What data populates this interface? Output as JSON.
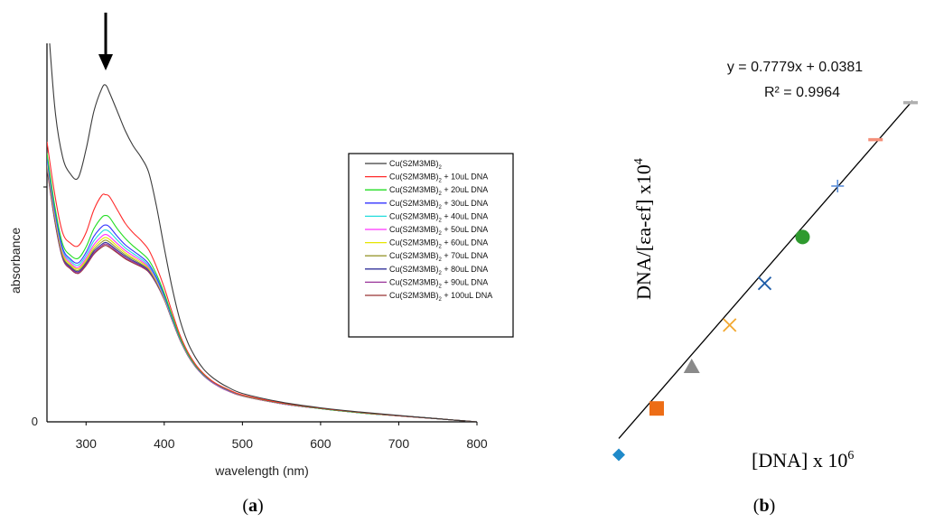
{
  "panels": {
    "a_label": "a",
    "b_label": "b"
  },
  "chart_data": [
    {
      "type": "line",
      "panel": "a",
      "xlabel": "wavelength (nm)",
      "ylabel": "absorbance",
      "xlim": [
        250,
        800
      ],
      "ylim": [
        0,
        1.0
      ],
      "x_ticks": [
        300,
        400,
        500,
        600,
        700,
        800
      ],
      "y_ticks": [
        0
      ],
      "annotation": "downward arrow marking peak near 325 nm",
      "x": [
        250,
        260,
        270,
        280,
        290,
        300,
        310,
        320,
        325,
        330,
        340,
        350,
        360,
        370,
        380,
        390,
        400,
        410,
        420,
        430,
        440,
        450,
        460,
        470,
        480,
        500,
        550,
        600,
        650,
        700,
        750,
        800
      ],
      "series": [
        {
          "name": "Cu(S2M3MB)2",
          "sub_index": "2",
          "suffix": "",
          "color": "#3a3a3a",
          "values": [
            1.1,
            0.83,
            0.7,
            0.655,
            0.645,
            0.72,
            0.82,
            0.88,
            0.89,
            0.87,
            0.82,
            0.77,
            0.73,
            0.7,
            0.66,
            0.57,
            0.46,
            0.355,
            0.27,
            0.21,
            0.17,
            0.14,
            0.12,
            0.105,
            0.093,
            0.075,
            0.052,
            0.037,
            0.026,
            0.017,
            0.008,
            0.0
          ]
        },
        {
          "name": "Cu(S2M3MB)2",
          "sub_index": "2",
          "suffix": " + 10uL DNA",
          "color": "#ff2a2a",
          "values": [
            0.74,
            0.6,
            0.5,
            0.472,
            0.465,
            0.5,
            0.56,
            0.598,
            0.6,
            0.595,
            0.56,
            0.525,
            0.5,
            0.48,
            0.455,
            0.41,
            0.355,
            0.29,
            0.23,
            0.185,
            0.152,
            0.128,
            0.11,
            0.097,
            0.087,
            0.071,
            0.05,
            0.036,
            0.025,
            0.016,
            0.008,
            0.0
          ]
        },
        {
          "name": "Cu(S2M3MB)2",
          "sub_index": "2",
          "suffix": " + 20uL DNA",
          "color": "#22dd22",
          "values": [
            0.71,
            0.57,
            0.47,
            0.44,
            0.432,
            0.462,
            0.51,
            0.54,
            0.545,
            0.54,
            0.51,
            0.485,
            0.465,
            0.448,
            0.428,
            0.39,
            0.34,
            0.28,
            0.224,
            0.181,
            0.149,
            0.126,
            0.109,
            0.096,
            0.086,
            0.07,
            0.049,
            0.035,
            0.024,
            0.016,
            0.008,
            0.0
          ]
        },
        {
          "name": "Cu(S2M3MB)2",
          "sub_index": "2",
          "suffix": " + 30uL DNA",
          "color": "#3333ff",
          "values": [
            0.7,
            0.56,
            0.46,
            0.43,
            0.42,
            0.448,
            0.49,
            0.515,
            0.52,
            0.515,
            0.49,
            0.468,
            0.452,
            0.437,
            0.418,
            0.382,
            0.334,
            0.276,
            0.222,
            0.18,
            0.148,
            0.125,
            0.108,
            0.095,
            0.085,
            0.07,
            0.049,
            0.035,
            0.024,
            0.016,
            0.008,
            0.0
          ]
        },
        {
          "name": "Cu(S2M3MB)2",
          "sub_index": "2",
          "suffix": " + 40uL DNA",
          "color": "#22dddd",
          "values": [
            0.695,
            0.555,
            0.455,
            0.425,
            0.414,
            0.44,
            0.478,
            0.502,
            0.507,
            0.502,
            0.48,
            0.46,
            0.445,
            0.431,
            0.413,
            0.378,
            0.331,
            0.274,
            0.221,
            0.179,
            0.148,
            0.125,
            0.108,
            0.095,
            0.085,
            0.07,
            0.049,
            0.035,
            0.024,
            0.016,
            0.008,
            0.0
          ]
        },
        {
          "name": "Cu(S2M3MB)2",
          "sub_index": "2",
          "suffix": " + 50uL DNA",
          "color": "#ff33ff",
          "values": [
            0.69,
            0.55,
            0.45,
            0.42,
            0.408,
            0.433,
            0.468,
            0.49,
            0.495,
            0.49,
            0.471,
            0.453,
            0.439,
            0.426,
            0.409,
            0.375,
            0.329,
            0.273,
            0.22,
            0.178,
            0.147,
            0.124,
            0.107,
            0.094,
            0.084,
            0.069,
            0.048,
            0.035,
            0.024,
            0.016,
            0.008,
            0.0
          ]
        },
        {
          "name": "Cu(S2M3MB)2",
          "sub_index": "2",
          "suffix": " + 60uL DNA",
          "color": "#e6e600",
          "values": [
            0.685,
            0.545,
            0.445,
            0.416,
            0.404,
            0.428,
            0.461,
            0.482,
            0.487,
            0.482,
            0.464,
            0.447,
            0.434,
            0.422,
            0.406,
            0.372,
            0.327,
            0.272,
            0.219,
            0.178,
            0.147,
            0.124,
            0.107,
            0.094,
            0.084,
            0.069,
            0.048,
            0.035,
            0.024,
            0.016,
            0.008,
            0.0
          ]
        },
        {
          "name": "Cu(S2M3MB)2",
          "sub_index": "2",
          "suffix": " + 70uL DNA",
          "color": "#999933",
          "values": [
            0.68,
            0.54,
            0.44,
            0.412,
            0.4,
            0.423,
            0.455,
            0.475,
            0.48,
            0.475,
            0.458,
            0.442,
            0.43,
            0.418,
            0.403,
            0.37,
            0.326,
            0.271,
            0.219,
            0.177,
            0.146,
            0.124,
            0.107,
            0.094,
            0.084,
            0.069,
            0.048,
            0.035,
            0.024,
            0.016,
            0.008,
            0.0
          ]
        },
        {
          "name": "Cu(S2M3MB)2",
          "sub_index": "2",
          "suffix": " + 80uL DNA",
          "color": "#333399",
          "values": [
            0.676,
            0.536,
            0.437,
            0.409,
            0.397,
            0.419,
            0.45,
            0.469,
            0.474,
            0.469,
            0.453,
            0.438,
            0.426,
            0.415,
            0.4,
            0.368,
            0.325,
            0.27,
            0.218,
            0.177,
            0.146,
            0.123,
            0.106,
            0.094,
            0.084,
            0.069,
            0.048,
            0.035,
            0.024,
            0.016,
            0.008,
            0.0
          ]
        },
        {
          "name": "Cu(S2M3MB)2",
          "sub_index": "2",
          "suffix": " + 90uL DNA",
          "color": "#993399",
          "values": [
            0.673,
            0.533,
            0.434,
            0.406,
            0.394,
            0.416,
            0.446,
            0.465,
            0.47,
            0.465,
            0.449,
            0.434,
            0.423,
            0.412,
            0.398,
            0.366,
            0.324,
            0.269,
            0.218,
            0.176,
            0.146,
            0.123,
            0.106,
            0.093,
            0.083,
            0.069,
            0.048,
            0.035,
            0.024,
            0.016,
            0.008,
            0.0
          ]
        },
        {
          "name": "Cu(S2M3MB)2",
          "sub_index": "2",
          "suffix": " + 100uL DNA",
          "color": "#993333",
          "values": [
            0.67,
            0.53,
            0.432,
            0.404,
            0.392,
            0.413,
            0.443,
            0.461,
            0.466,
            0.461,
            0.446,
            0.431,
            0.42,
            0.41,
            0.396,
            0.365,
            0.323,
            0.269,
            0.217,
            0.176,
            0.145,
            0.123,
            0.106,
            0.093,
            0.083,
            0.068,
            0.048,
            0.035,
            0.024,
            0.016,
            0.008,
            0.0
          ]
        }
      ]
    },
    {
      "type": "scatter",
      "panel": "b",
      "xlabel": "[DNA] x 10",
      "xlabel_exp": "6",
      "ylabel": "DNA/[εa-εf] x10",
      "ylabel_exp": "4",
      "equation": "y = 0.7779x + 0.0381",
      "r_squared": "R² = 0.9964",
      "axes_visible": false,
      "fit": {
        "slope": 0.7779,
        "intercept": 0.0381,
        "x_range": [
          0.0,
          1.0
        ]
      },
      "xlim": [
        0.0,
        1.0
      ],
      "ylim": [
        0.0,
        0.85
      ],
      "points": [
        {
          "x": 0.0,
          "y": 0.04,
          "marker": "diamond",
          "color": "#1f8ac9"
        },
        {
          "x": 0.13,
          "y": 0.14,
          "marker": "square",
          "color": "#ed6d16"
        },
        {
          "x": 0.25,
          "y": 0.23,
          "marker": "triangle",
          "color": "#8a8a8a"
        },
        {
          "x": 0.38,
          "y": 0.32,
          "marker": "x",
          "color": "#f2a830"
        },
        {
          "x": 0.5,
          "y": 0.41,
          "marker": "x",
          "color": "#1f5da8"
        },
        {
          "x": 0.63,
          "y": 0.51,
          "marker": "circle",
          "color": "#2e9a2e"
        },
        {
          "x": 0.75,
          "y": 0.62,
          "marker": "plus",
          "color": "#5b8fd9"
        },
        {
          "x": 0.88,
          "y": 0.72,
          "marker": "dash",
          "color": "#f4907a"
        },
        {
          "x": 1.0,
          "y": 0.8,
          "marker": "dash",
          "color": "#b0b0b0"
        }
      ]
    }
  ]
}
